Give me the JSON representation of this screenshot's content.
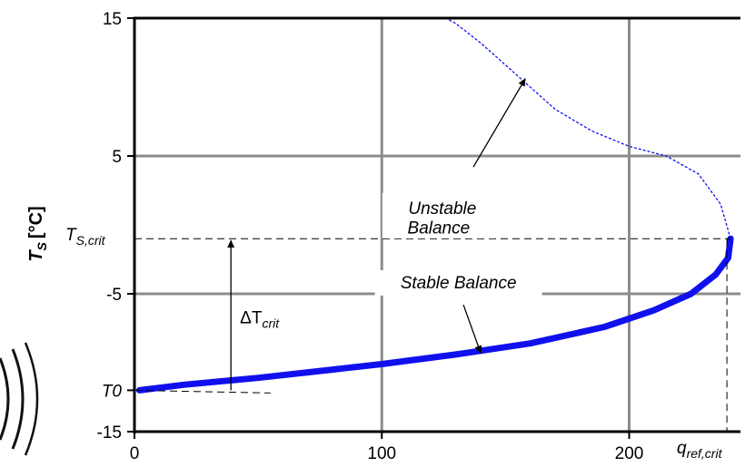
{
  "chart_data": {
    "type": "line",
    "ylabel": {
      "symbol": "T",
      "subscript": "S",
      "unit": "[°C]"
    },
    "xlim": [
      0,
      245
    ],
    "ylim": [
      -15,
      15
    ],
    "x_ticks": [
      0,
      100,
      200
    ],
    "y_ticks": [
      15,
      5,
      -5,
      -15
    ],
    "grid_x": [
      100,
      200
    ],
    "grid_y": [
      5,
      -5
    ],
    "y_tick_T0": {
      "label": "T0",
      "value": -12
    },
    "series": [
      {
        "style": "solid-thick",
        "color": "#1010ee",
        "x": [
          2,
          20,
          50,
          80,
          100,
          130,
          160,
          190,
          210,
          225,
          235,
          240,
          241
        ],
        "y": [
          -12.0,
          -11.6,
          -11.1,
          -10.5,
          -10.1,
          -9.4,
          -8.6,
          -7.4,
          -6.2,
          -5.0,
          -3.6,
          -2.4,
          -1.0
        ]
      },
      {
        "style": "dashed-thin",
        "color": "#1010ee",
        "x": [
          241,
          237,
          228,
          215,
          200,
          185,
          170,
          160,
          150,
          140,
          130,
          126
        ],
        "y": [
          -1.0,
          1.5,
          3.7,
          5.0,
          5.7,
          6.8,
          8.4,
          10.0,
          11.6,
          13.2,
          14.6,
          15.0
        ]
      }
    ],
    "critical": {
      "T_label": {
        "symbol": "T",
        "subscript": "S,crit"
      },
      "q_label": {
        "symbol": "q",
        "subscript": "ref,crit"
      },
      "T_value": -1.0,
      "q_value": 241
    },
    "annotations": {
      "unstable_line1": "Unstable",
      "unstable_line2": "Balance",
      "stable": "Stable Balance",
      "delta": {
        "symbol": "ΔT",
        "subscript": "crit"
      }
    }
  }
}
